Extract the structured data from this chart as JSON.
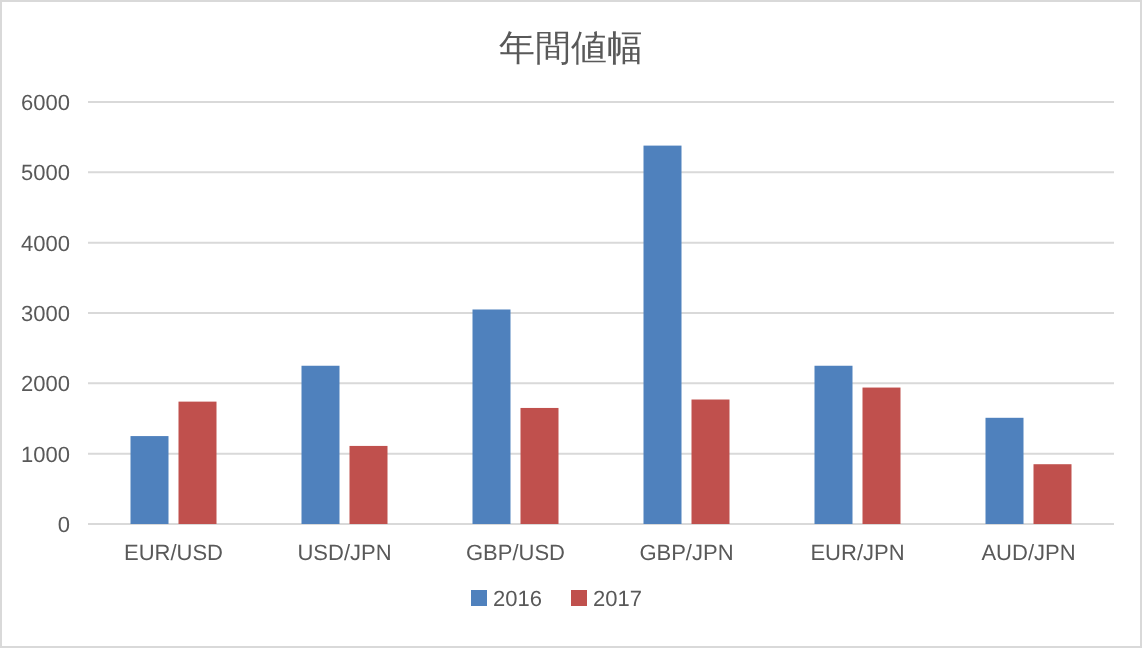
{
  "chart_data": {
    "type": "bar",
    "title": "年間値幅",
    "categories": [
      "EUR/USD",
      "USD/JPN",
      "GBP/USD",
      "GBP/JPN",
      "EUR/JPN",
      "AUD/JPN"
    ],
    "series": [
      {
        "name": "2016",
        "color": "#4f81bd",
        "values": [
          1250,
          2250,
          3050,
          5380,
          2250,
          1510
        ]
      },
      {
        "name": "2017",
        "color": "#c0504d",
        "values": [
          1740,
          1110,
          1650,
          1770,
          1940,
          850
        ]
      }
    ],
    "ylim": [
      0,
      6000
    ],
    "yticks": [
      0,
      1000,
      2000,
      3000,
      4000,
      5000,
      6000
    ],
    "grid": "y",
    "legend": "bottom"
  }
}
